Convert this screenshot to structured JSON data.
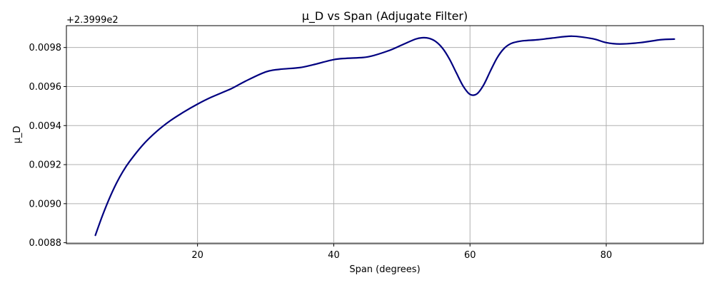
{
  "chart_data": {
    "type": "line",
    "title": "μ_D vs Span (Adjugate Filter)",
    "xlabel": "Span (degrees)",
    "ylabel": "μ_D",
    "offset_label": "+2.3999e2",
    "xlim": [
      0.75,
      94.25
    ],
    "ylim": [
      0.008795,
      0.009912
    ],
    "xticks": [
      20,
      40,
      60,
      80
    ],
    "yticks": [
      0.0088,
      0.009,
      0.0092,
      0.0094,
      0.0096,
      0.0098
    ],
    "ytick_labels": [
      "0.0088",
      "0.0090",
      "0.0092",
      "0.0094",
      "0.0096",
      "0.0098"
    ],
    "grid": true,
    "series": [
      {
        "color": "#000080",
        "x": [
          5,
          6,
          7,
          8,
          9,
          10,
          12,
          14,
          16,
          18,
          20,
          22,
          25,
          27,
          30,
          32,
          35,
          37,
          40,
          42,
          45,
          48,
          50,
          52,
          53,
          54,
          55,
          56,
          57,
          58,
          59,
          60,
          61,
          62,
          63,
          64,
          65,
          66,
          67,
          68,
          70,
          72,
          75,
          78,
          80,
          82,
          85,
          88,
          90
        ],
        "y": [
          0.008838,
          0.008935,
          0.009022,
          0.009098,
          0.009162,
          0.009215,
          0.009302,
          0.00937,
          0.009425,
          0.00947,
          0.00951,
          0.009545,
          0.00959,
          0.009627,
          0.009675,
          0.009688,
          0.009697,
          0.009712,
          0.009738,
          0.009745,
          0.009752,
          0.009783,
          0.009813,
          0.009843,
          0.00985,
          0.009847,
          0.00983,
          0.009795,
          0.00974,
          0.00967,
          0.009602,
          0.00956,
          0.009562,
          0.009608,
          0.00968,
          0.009748,
          0.009795,
          0.00982,
          0.00983,
          0.009835,
          0.00984,
          0.009848,
          0.009858,
          0.009845,
          0.009825,
          0.009818,
          0.009825,
          0.00984,
          0.009843
        ]
      }
    ]
  }
}
